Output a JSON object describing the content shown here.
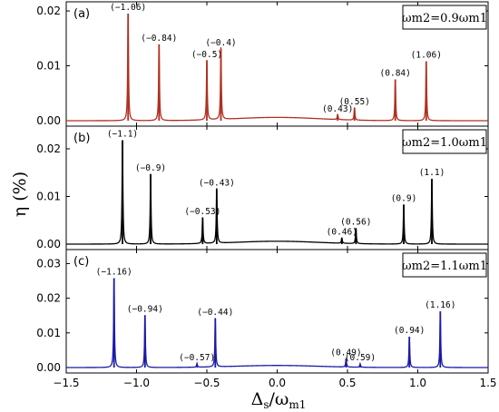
{
  "chart_data": {
    "type": "line",
    "ylabel": "η (%)",
    "xlabel": "Δs/ωm1",
    "xlim": [
      -1.5,
      1.5
    ],
    "xticks": [
      -1.5,
      -1.0,
      -0.5,
      0.0,
      0.5,
      1.0,
      1.5
    ],
    "xtick_labels": [
      "−1.5",
      "−1.0",
      "−0.5",
      "0.0",
      "0.5",
      "1.0",
      "1.5"
    ],
    "panels": [
      {
        "panel_label": "(a)",
        "legend": "ωm2=0.9ωm1",
        "color": "#b03020",
        "ylim": [
          0,
          0.021
        ],
        "yticks": [
          0.0,
          0.01,
          0.02
        ],
        "ytick_labels": [
          "0.00",
          "0.01",
          "0.02"
        ],
        "peaks": [
          {
            "x": -1.06,
            "y": 0.0195,
            "label": "(−1.06)"
          },
          {
            "x": -0.84,
            "y": 0.0139,
            "label": "(−0.84)"
          },
          {
            "x": -0.5,
            "y": 0.0109,
            "label": "(−0.5)"
          },
          {
            "x": -0.4,
            "y": 0.0131,
            "label": "(−0.4)"
          },
          {
            "x": 0.43,
            "y": 0.001,
            "label": "(0.43)"
          },
          {
            "x": 0.55,
            "y": 0.0023,
            "label": "(0.55)"
          },
          {
            "x": 0.84,
            "y": 0.0075,
            "label": "(0.84)"
          },
          {
            "x": 1.06,
            "y": 0.0108,
            "label": "(1.06)"
          }
        ]
      },
      {
        "panel_label": "(b)",
        "legend": "ωm2=1.0ωm1",
        "color": "#000000",
        "ylim": [
          0,
          0.024
        ],
        "yticks": [
          0.0,
          0.01,
          0.02
        ],
        "ytick_labels": [
          "0.00",
          "0.01",
          "0.02"
        ],
        "peaks": [
          {
            "x": -1.1,
            "y": 0.0218,
            "label": "(−1.1)"
          },
          {
            "x": -0.9,
            "y": 0.0147,
            "label": "(−0.9)"
          },
          {
            "x": -0.53,
            "y": 0.0055,
            "label": "(−0.53)"
          },
          {
            "x": -0.43,
            "y": 0.0115,
            "label": "(−0.43)"
          },
          {
            "x": 0.46,
            "y": 0.0012,
            "label": "(0.46)"
          },
          {
            "x": 0.56,
            "y": 0.0033,
            "label": "(0.56)"
          },
          {
            "x": 0.9,
            "y": 0.0083,
            "label": "(0.9)"
          },
          {
            "x": 1.1,
            "y": 0.0137,
            "label": "(1.1)"
          }
        ]
      },
      {
        "panel_label": "(c)",
        "legend": "ωm2=1.1ωm1",
        "color": "#1a1aa8",
        "ylim": [
          0,
          0.033
        ],
        "yticks": [
          0.0,
          0.01,
          0.02,
          0.03
        ],
        "ytick_labels": [
          "0.00",
          "0.01",
          "0.02",
          "0.03"
        ],
        "peaks": [
          {
            "x": -1.16,
            "y": 0.0258,
            "label": "(−1.16)"
          },
          {
            "x": -0.94,
            "y": 0.0151,
            "label": "(−0.94)"
          },
          {
            "x": -0.57,
            "y": 0.0011,
            "label": "(−0.57)"
          },
          {
            "x": -0.44,
            "y": 0.0141,
            "label": "(−0.44)"
          },
          {
            "x": 0.49,
            "y": 0.0025,
            "label": "(0.49)"
          },
          {
            "x": 0.59,
            "y": 0.001,
            "label": "(0.59)"
          },
          {
            "x": 0.94,
            "y": 0.0089,
            "label": "(0.94)"
          },
          {
            "x": 1.16,
            "y": 0.0162,
            "label": "(1.16)"
          }
        ]
      }
    ]
  }
}
